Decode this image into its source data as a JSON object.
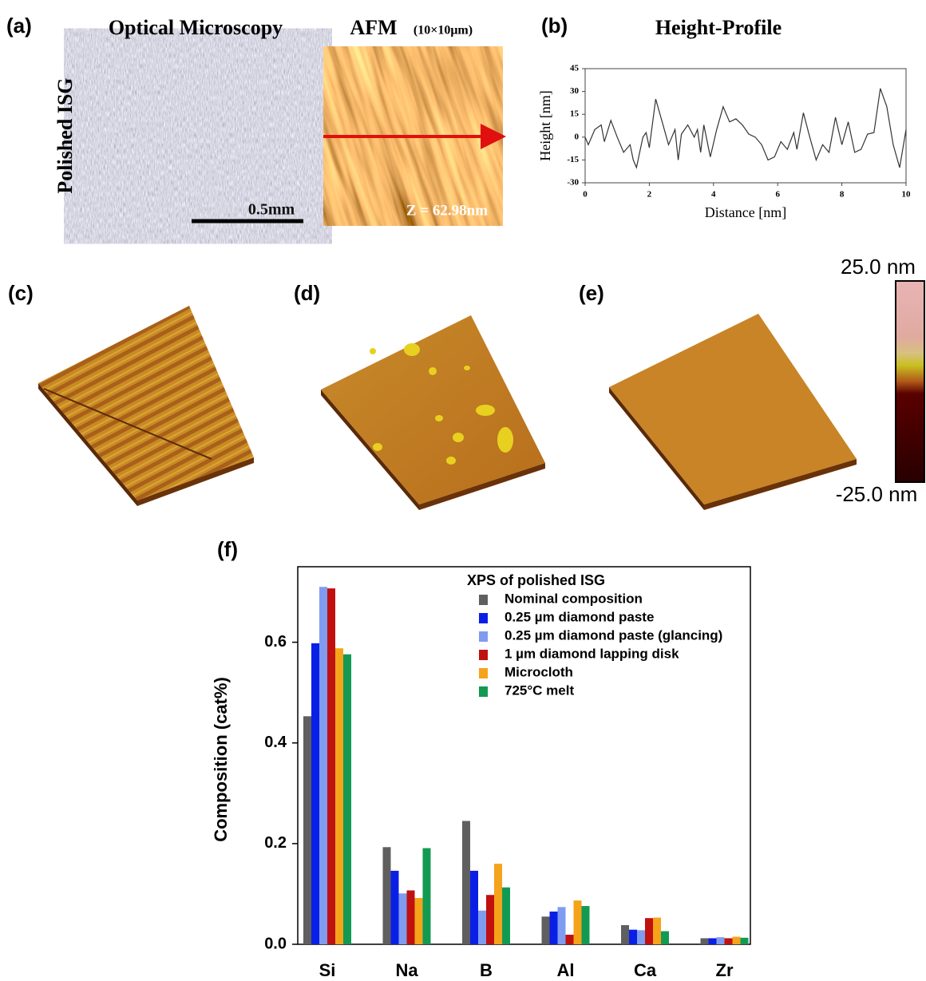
{
  "figure": {
    "panel_labels": [
      "(a)",
      "(c)",
      "(d)",
      "(e)"
    ],
    "optical_title": "Optical Microscopy",
    "afm_title": "AFM",
    "afm_scan": "(10×10μm)",
    "row_label": "Polished ISG",
    "scale_bar": "0.5mm",
    "z_range": "Z = 62.98nm",
    "colorbar_max": "25.0 nm",
    "colorbar_min": "-25.0 nm"
  },
  "chart_data": [
    {
      "type": "line",
      "panel_label": "(b)",
      "title": "Height-Profile",
      "x_label": "Distance [nm]",
      "y_label": "Height [nm]",
      "color": "#333333",
      "x": [
        0,
        0.1,
        0.3,
        0.5,
        0.6,
        0.8,
        1.0,
        1.2,
        1.4,
        1.5,
        1.6,
        1.8,
        1.9,
        2.0,
        2.2,
        2.4,
        2.6,
        2.8,
        2.9,
        3.0,
        3.2,
        3.4,
        3.5,
        3.6,
        3.7,
        3.9,
        4.1,
        4.3,
        4.5,
        4.7,
        4.9,
        5.1,
        5.3,
        5.5,
        5.7,
        5.9,
        6.1,
        6.3,
        6.5,
        6.6,
        6.8,
        7.0,
        7.2,
        7.4,
        7.6,
        7.8,
        8.0,
        8.2,
        8.4,
        8.6,
        8.8,
        9.0,
        9.2,
        9.4,
        9.6,
        9.8,
        10
      ],
      "values": [
        0,
        -5,
        5,
        8,
        -3,
        11,
        0,
        -10,
        -5,
        -15,
        -20,
        0,
        3,
        -7,
        25,
        10,
        -5,
        5,
        -15,
        2,
        8,
        0,
        5,
        -10,
        8,
        -13,
        5,
        20,
        10,
        12,
        8,
        2,
        0,
        -5,
        -15,
        -13,
        -3,
        -8,
        3,
        -8,
        16,
        0,
        -15,
        -5,
        -10,
        13,
        -5,
        10,
        -10,
        -8,
        2,
        3,
        32,
        20,
        -5,
        -20,
        5
      ],
      "xlim": [
        0,
        10
      ],
      "xticks": [
        0,
        2,
        4,
        6,
        8,
        10
      ],
      "ylim": [
        -30,
        45
      ],
      "yticks": [
        -30,
        -15,
        0,
        15,
        30,
        45
      ]
    },
    {
      "type": "bar",
      "panel_label": "(f)",
      "y_label": "Composition (cat%)",
      "legend_title": "XPS of polished ISG",
      "categories": [
        "Si",
        "Na",
        "B",
        "Al",
        "Ca",
        "Zr"
      ],
      "series": [
        {
          "name": "Nominal composition",
          "color": "#5f5f5f",
          "values": [
            0.453,
            0.193,
            0.245,
            0.055,
            0.038,
            0.012
          ]
        },
        {
          "name": "0.25 µm diamond paste",
          "color": "#0a1fe6",
          "values": [
            0.598,
            0.146,
            0.146,
            0.065,
            0.029,
            0.012
          ]
        },
        {
          "name": "0.25 µm diamond paste (glancing)",
          "color": "#7f9cf0",
          "values": [
            0.71,
            0.101,
            0.067,
            0.074,
            0.028,
            0.014
          ]
        },
        {
          "name": "1 µm diamond lapping disk",
          "color": "#c01010",
          "values": [
            0.707,
            0.107,
            0.098,
            0.019,
            0.052,
            0.012
          ]
        },
        {
          "name": "Microcloth",
          "color": "#f5a31a",
          "values": [
            0.588,
            0.092,
            0.16,
            0.087,
            0.053,
            0.015
          ]
        },
        {
          "name": "725°C melt",
          "color": "#139a52",
          "values": [
            0.576,
            0.191,
            0.113,
            0.076,
            0.026,
            0.013
          ]
        }
      ],
      "ylim": [
        0,
        0.75
      ],
      "yticks": [
        {
          "value": 0,
          "label": "0.0"
        },
        0.2,
        0.4,
        0.6
      ]
    }
  ]
}
